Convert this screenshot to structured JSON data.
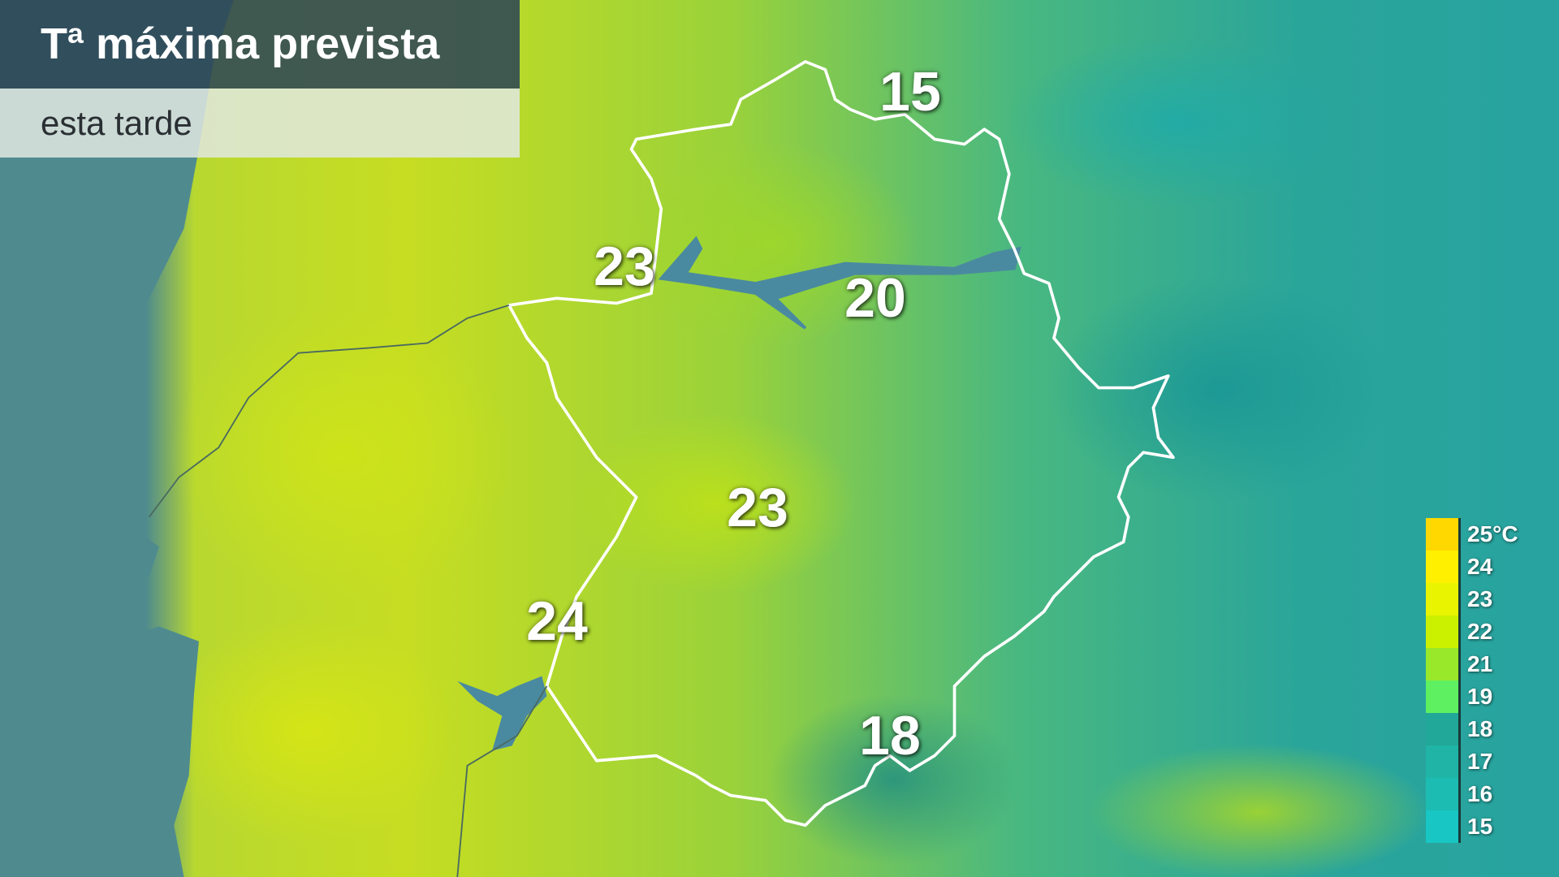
{
  "header": {
    "title": "Tª máxima prevista",
    "subtitle": "esta tarde"
  },
  "temperatures": [
    {
      "value": "15"
    },
    {
      "value": "23"
    },
    {
      "value": "20"
    },
    {
      "value": "23"
    },
    {
      "value": "24"
    },
    {
      "value": "18"
    }
  ],
  "legend": {
    "items": [
      {
        "label": "25°C",
        "color": "#ffd800"
      },
      {
        "label": "24",
        "color": "#fff000"
      },
      {
        "label": "23",
        "color": "#e8f400"
      },
      {
        "label": "22",
        "color": "#cbf000"
      },
      {
        "label": "21",
        "color": "#9ae82a"
      },
      {
        "label": "19",
        "color": "#5ef060"
      },
      {
        "label": "18",
        "color": "#22a898"
      },
      {
        "label": "17",
        "color": "#1fb4a6"
      },
      {
        "label": "16",
        "color": "#1cbcb2"
      },
      {
        "label": "15",
        "color": "#18c6c4"
      }
    ]
  },
  "colors": {
    "region_border": "#ffffff",
    "sea": "#4f8b8e",
    "reservoirs": "#4a8aa0"
  }
}
